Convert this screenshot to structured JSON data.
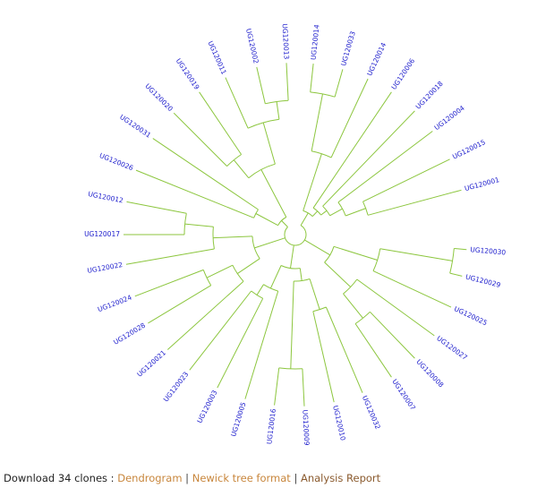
{
  "tree": {
    "leaves": [
      {
        "id": "UG120014",
        "angle": -84
      },
      {
        "id": "UG120033",
        "angle": -74
      },
      {
        "id": "UG120014",
        "angle": -65
      },
      {
        "id": "UG120006",
        "angle": -56
      },
      {
        "id": "UG120018",
        "angle": -46
      },
      {
        "id": "UG120004",
        "angle": -37
      },
      {
        "id": "UG120015",
        "angle": -26
      },
      {
        "id": "UG120001",
        "angle": -15
      },
      {
        "id": "UG120030",
        "angle": 5
      },
      {
        "id": "UG120029",
        "angle": 14
      },
      {
        "id": "UG120025",
        "angle": 25
      },
      {
        "id": "UG120027",
        "angle": 36
      },
      {
        "id": "UG120008",
        "angle": 46
      },
      {
        "id": "UG120007",
        "angle": 56
      },
      {
        "id": "UG120032",
        "angle": 67
      },
      {
        "id": "UG120010",
        "angle": 77
      },
      {
        "id": "UG120009",
        "angle": 87
      },
      {
        "id": "UG120016",
        "angle": 97
      },
      {
        "id": "UG120005",
        "angle": 107
      },
      {
        "id": "UG120003",
        "angle": 117
      },
      {
        "id": "UG120023",
        "angle": 128
      },
      {
        "id": "UG120021",
        "angle": 138
      },
      {
        "id": "UG120028",
        "angle": 149
      },
      {
        "id": "UG120024",
        "angle": 159
      },
      {
        "id": "UG120022",
        "angle": 170
      },
      {
        "id": "UG120017",
        "angle": 180
      },
      {
        "id": "UG120012",
        "angle": 191
      },
      {
        "id": "UG120026",
        "angle": 202
      },
      {
        "id": "UG120031",
        "angle": 214
      },
      {
        "id": "UG120020",
        "angle": 225
      },
      {
        "id": "UG120019",
        "angle": 236
      },
      {
        "id": "UG120011",
        "angle": 246
      },
      {
        "id": "UG120002",
        "angle": 257
      },
      {
        "id": "UG120013",
        "angle": 267
      }
    ]
  },
  "footer": {
    "lead": "Download 34 clones",
    "colon": " : ",
    "dendrogram": "Dendrogram",
    "separator": " | ",
    "newick": "Newick tree format",
    "report": "Analysis Report"
  },
  "colors": {
    "branch": "#8cc63e",
    "leaf_text": "#1a1acc",
    "link": "#c8863c"
  }
}
